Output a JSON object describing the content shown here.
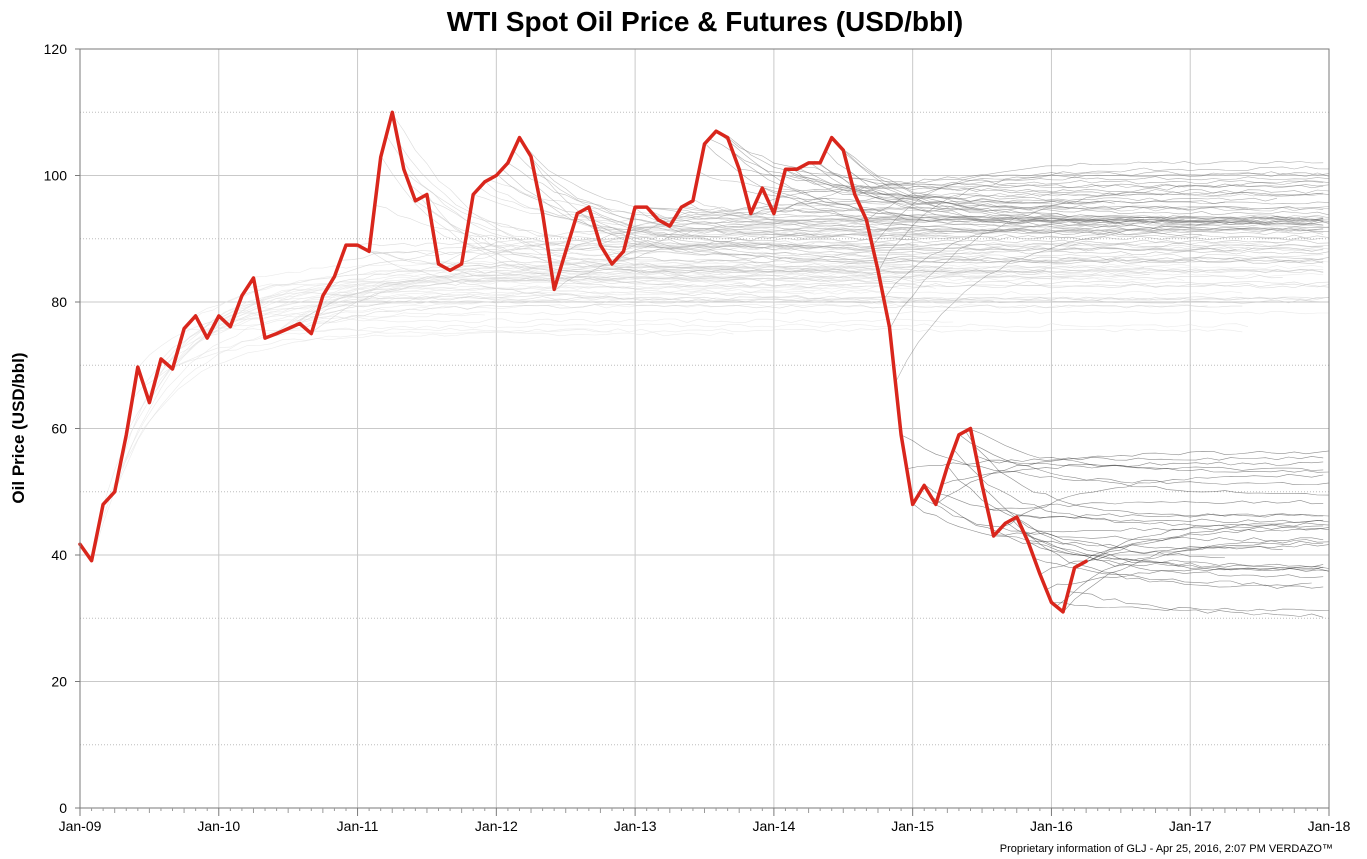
{
  "chart_data": {
    "type": "line",
    "title": "WTI Spot Oil Price & Futures (USD/bbl)",
    "xlabel": "",
    "ylabel": "Oil Price (USD/bbl)",
    "footer": "Proprietary information of GLJ - Apr 25, 2016, 2:07 PM  VERDAZO™",
    "xlim": [
      "2009-01",
      "2018-01"
    ],
    "ylim": [
      0,
      120
    ],
    "x_ticks": [
      "Jan-09",
      "Jan-10",
      "Jan-11",
      "Jan-12",
      "Jan-13",
      "Jan-14",
      "Jan-15",
      "Jan-16",
      "Jan-17",
      "Jan-18"
    ],
    "y_ticks": [
      "0",
      "20",
      "40",
      "60",
      "80",
      "100",
      "120"
    ],
    "grid": true,
    "spot_series": {
      "color": "#d9261c",
      "points": [
        [
          "2009-01-01",
          41.7
        ],
        [
          "2009-02-01",
          39.1
        ],
        [
          "2009-03-01",
          48.0
        ],
        [
          "2009-04-01",
          50.0
        ],
        [
          "2009-05-01",
          59.0
        ],
        [
          "2009-06-01",
          69.7
        ],
        [
          "2009-07-01",
          64.1
        ],
        [
          "2009-08-01",
          71.0
        ],
        [
          "2009-09-01",
          69.4
        ],
        [
          "2009-10-01",
          75.8
        ],
        [
          "2009-11-01",
          77.8
        ],
        [
          "2009-12-01",
          74.3
        ],
        [
          "2010-01-01",
          77.8
        ],
        [
          "2010-02-01",
          76.1
        ],
        [
          "2010-03-01",
          81.0
        ],
        [
          "2010-04-01",
          83.8
        ],
        [
          "2010-05-01",
          74.3
        ],
        [
          "2010-06-01",
          75.0
        ],
        [
          "2010-07-01",
          75.8
        ],
        [
          "2010-08-01",
          76.6
        ],
        [
          "2010-09-01",
          75.0
        ],
        [
          "2010-10-01",
          81.0
        ],
        [
          "2010-11-01",
          84.0
        ],
        [
          "2010-12-01",
          89.0
        ],
        [
          "2011-01-01",
          89.0
        ],
        [
          "2011-02-01",
          88.0
        ],
        [
          "2011-03-01",
          102.9
        ],
        [
          "2011-04-01",
          110.0
        ],
        [
          "2011-05-01",
          101.0
        ],
        [
          "2011-06-01",
          96.0
        ],
        [
          "2011-07-01",
          97.0
        ],
        [
          "2011-08-01",
          86.0
        ],
        [
          "2011-09-01",
          85.0
        ],
        [
          "2011-10-01",
          86.0
        ],
        [
          "2011-11-01",
          97.0
        ],
        [
          "2011-12-01",
          99.0
        ],
        [
          "2012-01-01",
          100.0
        ],
        [
          "2012-02-01",
          102.0
        ],
        [
          "2012-03-01",
          106.0
        ],
        [
          "2012-04-01",
          103.0
        ],
        [
          "2012-05-01",
          94.0
        ],
        [
          "2012-06-01",
          82.0
        ],
        [
          "2012-07-01",
          88.0
        ],
        [
          "2012-08-01",
          94.0
        ],
        [
          "2012-09-01",
          95.0
        ],
        [
          "2012-10-01",
          89.0
        ],
        [
          "2012-11-01",
          86.0
        ],
        [
          "2012-12-01",
          88.0
        ],
        [
          "2013-01-01",
          95.0
        ],
        [
          "2013-02-01",
          95.0
        ],
        [
          "2013-03-01",
          93.0
        ],
        [
          "2013-04-01",
          92.0
        ],
        [
          "2013-05-01",
          95.0
        ],
        [
          "2013-06-01",
          96.0
        ],
        [
          "2013-07-01",
          105.0
        ],
        [
          "2013-08-01",
          107.0
        ],
        [
          "2013-09-01",
          106.0
        ],
        [
          "2013-10-01",
          101.0
        ],
        [
          "2013-11-01",
          94.0
        ],
        [
          "2013-12-01",
          98.0
        ],
        [
          "2014-01-01",
          94.0
        ],
        [
          "2014-02-01",
          101.0
        ],
        [
          "2014-03-01",
          101.0
        ],
        [
          "2014-04-01",
          102.0
        ],
        [
          "2014-05-01",
          102.0
        ],
        [
          "2014-06-01",
          106.0
        ],
        [
          "2014-07-01",
          104.0
        ],
        [
          "2014-08-01",
          97.0
        ],
        [
          "2014-09-01",
          93.0
        ],
        [
          "2014-10-01",
          85.0
        ],
        [
          "2014-11-01",
          76.0
        ],
        [
          "2014-12-01",
          59.0
        ],
        [
          "2015-01-01",
          48.0
        ],
        [
          "2015-02-01",
          51.0
        ],
        [
          "2015-03-01",
          48.0
        ],
        [
          "2015-04-01",
          54.0
        ],
        [
          "2015-05-01",
          59.0
        ],
        [
          "2015-06-01",
          60.0
        ],
        [
          "2015-07-01",
          51.0
        ],
        [
          "2015-08-01",
          43.0
        ],
        [
          "2015-09-01",
          45.0
        ],
        [
          "2015-10-01",
          46.0
        ],
        [
          "2015-11-01",
          42.0
        ],
        [
          "2015-12-01",
          37.0
        ],
        [
          "2016-01-01",
          32.5
        ],
        [
          "2016-02-01",
          31.0
        ],
        [
          "2016-03-01",
          38.0
        ],
        [
          "2016-04-01",
          39.0
        ]
      ]
    },
    "futures_series": {
      "description": "Monthly WTI futures strips drawn from each trade month toward Jan-18; grayscale darkens with recency",
      "colors": [
        "#dedede",
        "#c8c8c8",
        "#a8a8a8",
        "#707070",
        "#303030"
      ]
    }
  }
}
